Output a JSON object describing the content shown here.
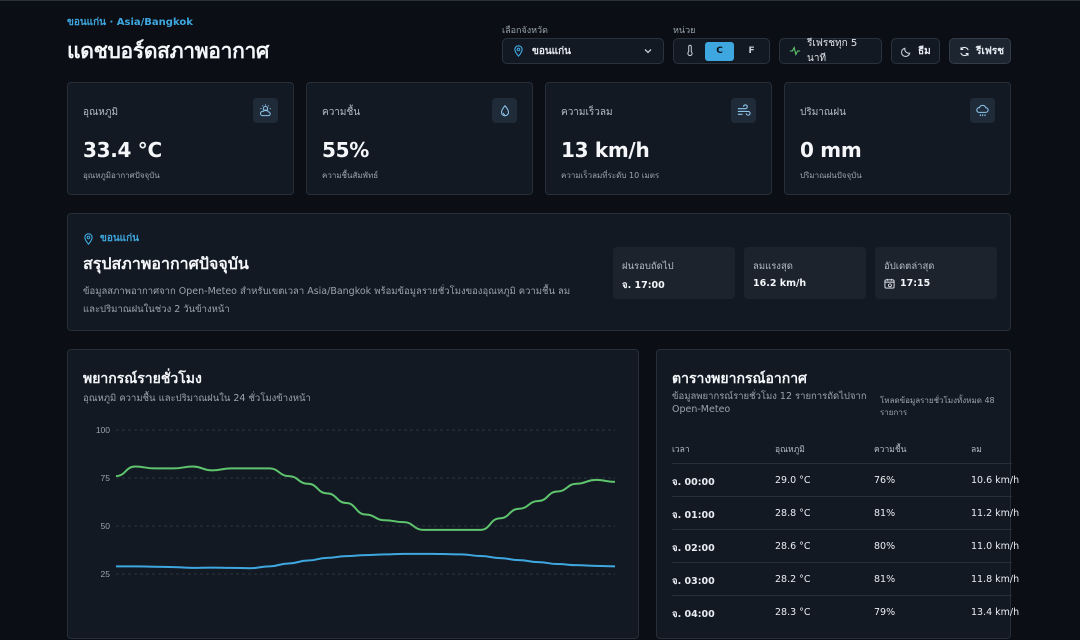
{
  "header": {
    "location_line": "ขอนแก่น · Asia/Bangkok",
    "title": "แดชบอร์ดสภาพอากาศ",
    "province_label": "เลือกจังหวัด",
    "province_value": "ขอนแก่น",
    "unit_label": "หน่วย",
    "unit_c": "C",
    "unit_f": "F",
    "refresh_interval": "รีเฟรชทุก 5 นาที",
    "theme_label": "ธีม",
    "refresh_label": "รีเฟรช"
  },
  "stats": [
    {
      "label": "อุณหภูมิ",
      "value": "33.4 °C",
      "sub": "อุณหภูมิอากาศปัจจุบัน",
      "icon": "sun-cloud-icon"
    },
    {
      "label": "ความชื้น",
      "value": "55%",
      "sub": "ความชื้นสัมพัทธ์",
      "icon": "droplet-icon"
    },
    {
      "label": "ความเร็วลม",
      "value": "13 km/h",
      "sub": "ความเร็วลมที่ระดับ 10 เมตร",
      "icon": "wind-icon"
    },
    {
      "label": "ปริมาณฝน",
      "value": "0 mm",
      "sub": "ปริมาณฝนปัจจุบัน",
      "icon": "rain-cloud-icon"
    }
  ],
  "summary": {
    "location": "ขอนแก่น",
    "title": "สรุปสภาพอากาศปัจจุบัน",
    "description": "ข้อมูลสภาพอากาศจาก Open-Meteo สำหรับเขตเวลา Asia/Bangkok พร้อมข้อมูลรายชั่วโมงของอุณหภูมิ ความชื้น ลม และปริมาณฝนในช่วง 2 วันข้างหน้า",
    "next_rain_label": "ฝนรอบถัดไป",
    "next_rain_value": "จ. 17:00",
    "max_wind_label": "ลมแรงสุด",
    "max_wind_value": "16.2 km/h",
    "updated_label": "อัปเดตล่าสุด",
    "updated_value": "17:15"
  },
  "chart": {
    "title": "พยากรณ์รายชั่วโมง",
    "subtitle": "อุณหภูมิ ความชื้น และปริมาณฝนใน 24 ชั่วโมงข้างหน้า"
  },
  "chart_data": {
    "type": "line",
    "ylim": [
      20,
      100
    ],
    "ytick_labels": [
      "100",
      "75",
      "50",
      "25"
    ],
    "ytick_values": [
      100,
      75,
      50,
      25
    ],
    "grid": true,
    "colors": {
      "humidity": "#5ec46e",
      "temperature": "#3fa7e0"
    },
    "series": [
      {
        "values": [
          76,
          81,
          80,
          80,
          81,
          79,
          80,
          80,
          80,
          76,
          72,
          67,
          62,
          56,
          53,
          52,
          48,
          48,
          48,
          48,
          54,
          59,
          63,
          68,
          72,
          74,
          73
        ]
      },
      {
        "values": [
          29,
          29,
          28.8,
          28.6,
          28.2,
          28.3,
          28.2,
          28,
          29,
          30.5,
          32,
          33.4,
          34.3,
          34.8,
          35.2,
          35.5,
          35.5,
          35.4,
          35.2,
          34.4,
          33.3,
          32.2,
          31.2,
          30.2,
          29.6,
          29.2,
          29
        ]
      }
    ]
  },
  "table": {
    "title": "ตารางพยากรณ์อากาศ",
    "subtitle": "ข้อมูลพยากรณ์รายชั่วโมง 12 รายการถัดไปจาก Open-Meteo",
    "note": "โหลดข้อมูลรายชั่วโมงทั้งหมด 48 รายการ",
    "columns": [
      "เวลา",
      "อุณหภูมิ",
      "ความชื้น",
      "ลม"
    ],
    "rows": [
      [
        "จ. 00:00",
        "29.0 °C",
        "76%",
        "10.6 km/h"
      ],
      [
        "จ. 01:00",
        "28.8 °C",
        "81%",
        "11.2 km/h"
      ],
      [
        "จ. 02:00",
        "28.6 °C",
        "80%",
        "11.0 km/h"
      ],
      [
        "จ. 03:00",
        "28.2 °C",
        "81%",
        "11.8 km/h"
      ],
      [
        "จ. 04:00",
        "28.3 °C",
        "79%",
        "13.4 km/h"
      ]
    ]
  }
}
